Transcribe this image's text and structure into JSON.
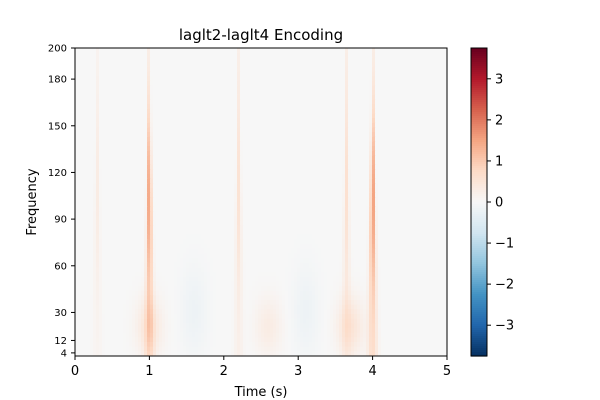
{
  "chart_data": {
    "type": "heatmap",
    "title": "laglt2-laglt4 Encoding",
    "xlabel": "Time (s)",
    "ylabel": "Frequency",
    "xlim": [
      0,
      5
    ],
    "ylim": [
      2,
      200
    ],
    "x_ticks": [
      0,
      1,
      2,
      3,
      4,
      5
    ],
    "y_ticks": [
      4,
      12,
      30,
      60,
      90,
      120,
      150,
      180,
      200
    ],
    "colormap": "RdBu_r",
    "colorbar": {
      "vmin": -3.75,
      "vmax": 3.75,
      "ticks": [
        -3,
        -2,
        -1,
        0,
        1,
        2,
        3
      ],
      "tick_labels": [
        "−3",
        "−2",
        "−1",
        "0",
        "1",
        "2",
        "3"
      ]
    },
    "features": [
      {
        "t": 1.0,
        "f_low": 2,
        "f_high": 200,
        "peak": 1.7,
        "kind": "vertical-streak"
      },
      {
        "t": 4.0,
        "f_low": 2,
        "f_high": 200,
        "peak": 1.8,
        "kind": "vertical-streak"
      },
      {
        "t": 2.2,
        "f_low": 2,
        "f_high": 200,
        "peak": 0.55,
        "kind": "vertical-streak"
      },
      {
        "t": 3.65,
        "f_low": 2,
        "f_high": 200,
        "peak": 0.6,
        "kind": "vertical-streak"
      },
      {
        "t": 0.3,
        "f_low": 2,
        "f_high": 200,
        "peak": 0.3,
        "kind": "vertical-streak"
      },
      {
        "t": 1.0,
        "f_low": 2,
        "f_high": 40,
        "peak": 0.45,
        "kind": "low-frequency-blob"
      },
      {
        "t": 3.7,
        "f_low": 2,
        "f_high": 40,
        "peak": 0.5,
        "kind": "low-frequency-blob"
      },
      {
        "t": 2.6,
        "f_low": 2,
        "f_high": 40,
        "peak": 0.3,
        "kind": "low-frequency-blob"
      },
      {
        "t": 1.6,
        "f_low": 2,
        "f_high": 60,
        "peak": -0.2,
        "kind": "low-frequency-blob"
      },
      {
        "t": 3.1,
        "f_low": 2,
        "f_high": 60,
        "peak": -0.2,
        "kind": "low-frequency-blob"
      }
    ]
  }
}
